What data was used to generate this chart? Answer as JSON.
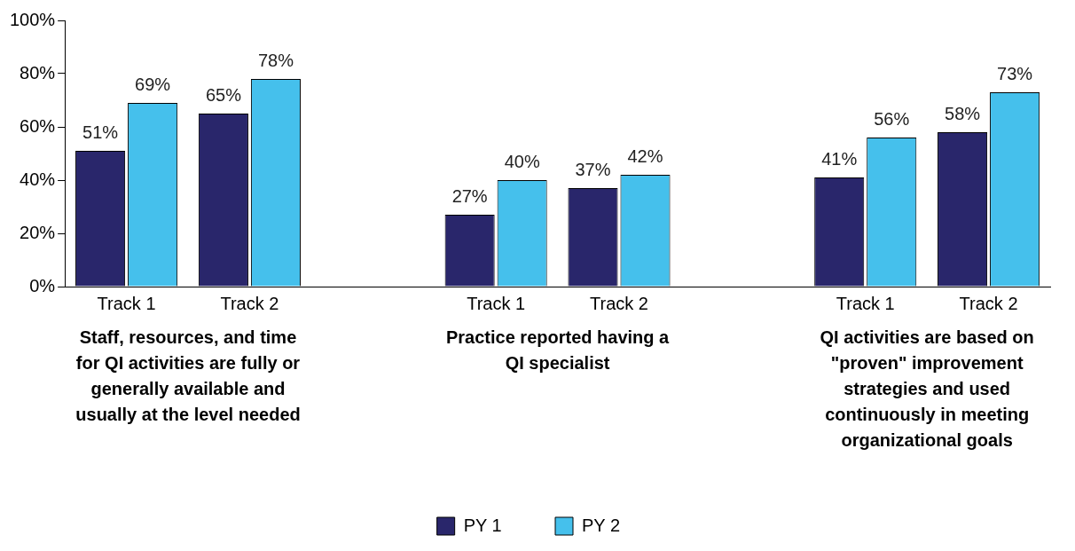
{
  "chart_data": {
    "type": "bar",
    "categories": [
      "Track 1",
      "Track 2",
      null,
      "Track 1",
      "Track 2",
      null,
      "Track 1",
      "Track 2"
    ],
    "series": [
      {
        "name": "PY 1",
        "color": "#29266b",
        "values": [
          51,
          65,
          null,
          27,
          37,
          null,
          41,
          58
        ],
        "value_labels": [
          "51%",
          "65%",
          null,
          "27%",
          "37%",
          null,
          "41%",
          "58%"
        ]
      },
      {
        "name": "PY 2",
        "color": "#45c0ec",
        "values": [
          69,
          78,
          null,
          40,
          42,
          null,
          56,
          73
        ],
        "value_labels": [
          "69%",
          "78%",
          null,
          "40%",
          "42%",
          null,
          "56%",
          "73%"
        ]
      }
    ],
    "ylim": [
      0,
      100
    ],
    "yticks": [
      {
        "value": 0,
        "label": "0%"
      },
      {
        "value": 20,
        "label": "20%"
      },
      {
        "value": 40,
        "label": "40%"
      },
      {
        "value": 60,
        "label": "60%"
      },
      {
        "value": 80,
        "label": "80%"
      },
      {
        "value": 100,
        "label": "100%"
      }
    ],
    "annotations": [
      "Staff, resources, and time for QI activities are fully or generally available and usually at the level needed",
      "Practice reported having a QI specialist",
      "QI activities are based on \"proven\" improvement strategies and used continuously in meeting organizational goals"
    ],
    "grid": false,
    "legend": "bottom"
  }
}
